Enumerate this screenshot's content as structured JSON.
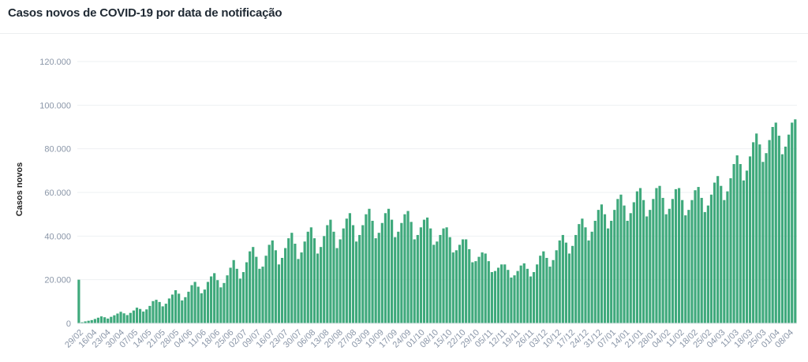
{
  "title": "Casos novos de COVID-19 por data de notificação",
  "chart_data": {
    "type": "bar",
    "title": "Casos novos de COVID-19 por data de notificação",
    "xlabel": "",
    "ylabel": "Casos novos",
    "ylim": [
      0,
      120000
    ],
    "yticks": [
      "0",
      "20.000",
      "40.000",
      "60.000",
      "80.000",
      "100.000",
      "120.000"
    ],
    "grid": true,
    "bar_color": "#3fa97c",
    "x_tick_labels": [
      "29/02",
      "16/04",
      "23/04",
      "30/04",
      "07/05",
      "14/05",
      "21/05",
      "28/05",
      "04/06",
      "11/06",
      "18/06",
      "25/06",
      "02/07",
      "09/07",
      "16/07",
      "23/07",
      "30/07",
      "06/08",
      "13/08",
      "20/08",
      "27/08",
      "03/09",
      "10/09",
      "17/09",
      "24/09",
      "01/10",
      "08/10",
      "15/10",
      "22/10",
      "29/10",
      "05/11",
      "12/11",
      "19/11",
      "26/11",
      "03/12",
      "10/12",
      "17/12",
      "24/12",
      "31/12",
      "07/01",
      "14/01",
      "21/01",
      "28/01",
      "04/02",
      "11/02",
      "18/02",
      "25/02",
      "04/03",
      "11/03",
      "18/03",
      "25/03",
      "01/04",
      "08/04"
    ],
    "values": [
      20000,
      500,
      900,
      1200,
      1500,
      2000,
      2600,
      3200,
      2800,
      2200,
      3000,
      3700,
      4500,
      5300,
      4600,
      3800,
      4800,
      5900,
      7200,
      6600,
      5400,
      6400,
      8000,
      10200,
      10800,
      9800,
      7800,
      9000,
      11400,
      13200,
      15200,
      13600,
      10500,
      12000,
      14500,
      17500,
      19000,
      16800,
      13800,
      15500,
      19000,
      21500,
      23000,
      19800,
      16500,
      18500,
      22000,
      25500,
      29000,
      25000,
      20500,
      23500,
      28000,
      33000,
      35000,
      30500,
      25000,
      26000,
      31000,
      36000,
      38000,
      33500,
      27000,
      30000,
      34500,
      39000,
      41500,
      36500,
      29500,
      32500,
      37500,
      42000,
      44000,
      39000,
      32000,
      35000,
      40000,
      45000,
      47500,
      42000,
      34500,
      38500,
      43500,
      48000,
      50500,
      45000,
      37500,
      40500,
      45000,
      50000,
      52500,
      47000,
      39000,
      41500,
      46000,
      50500,
      52500,
      47500,
      39500,
      42000,
      46000,
      50000,
      51500,
      46500,
      38500,
      40500,
      44000,
      47500,
      48500,
      43500,
      36000,
      37500,
      40500,
      43500,
      44000,
      39500,
      32500,
      33500,
      36000,
      38500,
      38500,
      34000,
      28000,
      28500,
      30500,
      32500,
      32000,
      28500,
      23500,
      24000,
      25500,
      27000,
      27000,
      24500,
      21000,
      22000,
      24000,
      26500,
      27500,
      25000,
      21500,
      23500,
      27000,
      31000,
      33000,
      30000,
      26000,
      29000,
      33500,
      38000,
      40500,
      37000,
      32000,
      35500,
      40500,
      45500,
      48000,
      44000,
      38000,
      42000,
      47000,
      52000,
      54500,
      50000,
      43500,
      47000,
      52000,
      57000,
      59000,
      54000,
      47000,
      50500,
      55500,
      60500,
      62000,
      56500,
      49000,
      52000,
      57000,
      62000,
      63000,
      57500,
      50000,
      52500,
      57000,
      61500,
      62000,
      56500,
      49500,
      52000,
      56500,
      61000,
      62500,
      57500,
      51000,
      54000,
      59000,
      64500,
      67500,
      63000,
      56500,
      60500,
      66500,
      73000,
      77000,
      73000,
      65500,
      70000,
      76500,
      83000,
      87000,
      82000,
      74000,
      78000,
      84000,
      90000,
      92000,
      86000,
      77500,
      81000,
      86500,
      92000,
      93500
    ]
  }
}
